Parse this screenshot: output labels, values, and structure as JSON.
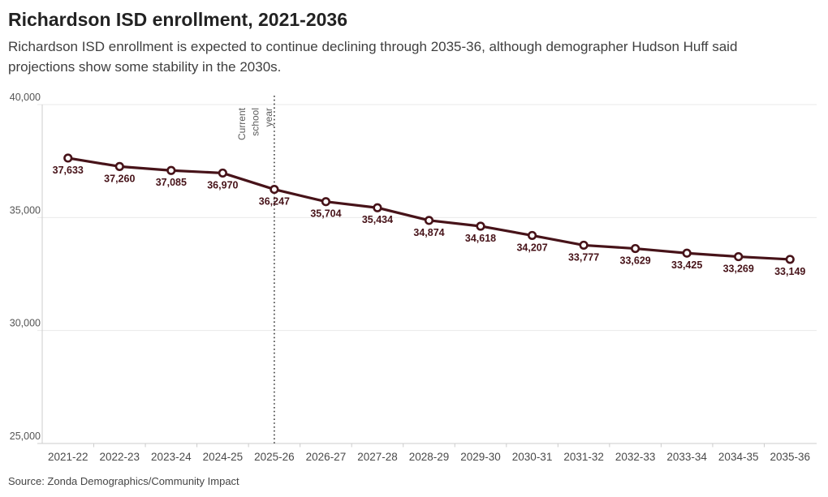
{
  "header": {
    "title": "Richardson ISD enrollment, 2021-2036",
    "subtitle": "Richardson ISD enrollment is expected to continue declining through 2035-36, although demographer Hudson Huff said projections show some stability in the 2030s."
  },
  "footer": {
    "source": "Source: Zonda Demographics/Community Impact"
  },
  "chart_data": {
    "type": "line",
    "title": "Richardson ISD enrollment, 2021-2036",
    "categories": [
      "2021-22",
      "2022-23",
      "2023-24",
      "2024-25",
      "2025-26",
      "2026-27",
      "2027-28",
      "2028-29",
      "2029-30",
      "2030-31",
      "2031-32",
      "2032-33",
      "2033-34",
      "2034-35",
      "2035-36"
    ],
    "values": [
      37633,
      37260,
      37085,
      36970,
      36247,
      35704,
      35434,
      34874,
      34618,
      34207,
      33777,
      33629,
      33425,
      33269,
      33149
    ],
    "value_labels": [
      "37,633",
      "37,260",
      "37,085",
      "36,970",
      "36,247",
      "35,704",
      "35,434",
      "34,874",
      "34,618",
      "34,207",
      "33,777",
      "33,629",
      "33,425",
      "33,269",
      "33,149"
    ],
    "xlabel": "",
    "ylabel": "",
    "ylim": [
      25000,
      40000
    ],
    "yticks": [
      25000,
      30000,
      35000,
      40000
    ],
    "ytick_labels": [
      "25,000",
      "30,000",
      "35,000",
      "40,000"
    ],
    "grid": true,
    "legend": "none",
    "annotation": {
      "lines": [
        "Current",
        "school",
        "year"
      ],
      "x_category": "2025-26",
      "style": "vertical-dotted-line"
    },
    "colors": {
      "line": "#471319",
      "marker_fill": "#ffffff",
      "data_label": "#471319",
      "grid": "#e9e9e9",
      "axis": "#cccccc",
      "tick_text": "#555555",
      "annotation_line": "#3a3a3a",
      "annotation_text": "#5c5c5c"
    }
  }
}
